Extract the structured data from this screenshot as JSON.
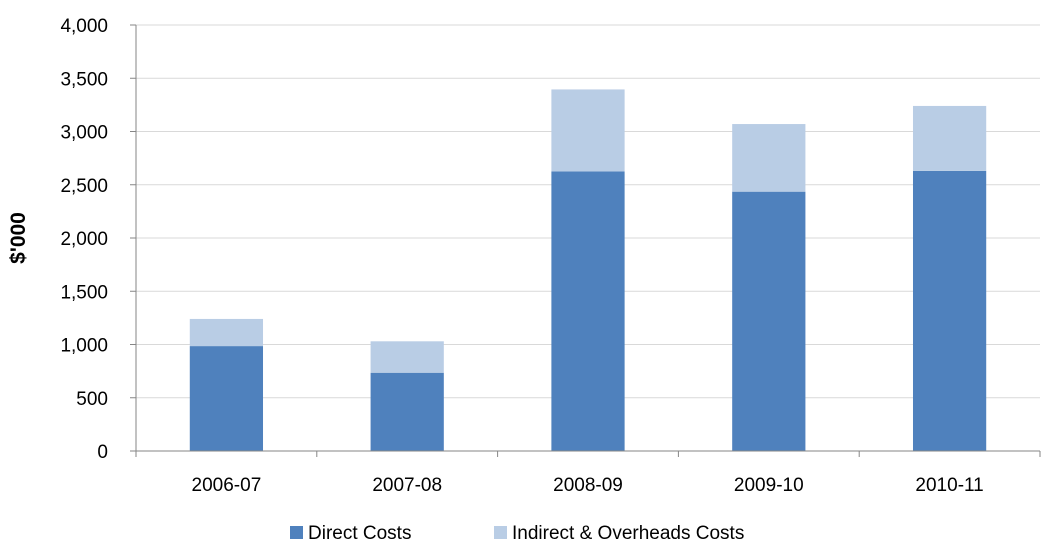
{
  "chart_data": {
    "type": "bar",
    "stacked": true,
    "categories": [
      "2006-07",
      "2007-08",
      "2008-09",
      "2009-10",
      "2010-11"
    ],
    "series": [
      {
        "name": "Direct Costs",
        "values": [
          985,
          735,
          2625,
          2435,
          2630
        ],
        "color": "#4f81bd"
      },
      {
        "name": "Indirect & Overheads Costs",
        "values": [
          255,
          295,
          770,
          635,
          610
        ],
        "color": "#b9cde5"
      }
    ],
    "title": "",
    "xlabel": "",
    "ylabel": "$'000",
    "ylim": [
      0,
      4000
    ],
    "yticks": [
      0,
      500,
      1000,
      1500,
      2000,
      2500,
      3000,
      3500,
      4000
    ],
    "ytick_labels": [
      "0",
      "500",
      "1,000",
      "1,500",
      "2,000",
      "2,500",
      "3,000",
      "3,500",
      "4,000"
    ],
    "grid": "horizontal",
    "legend_position": "bottom",
    "axis_color": "#868686",
    "grid_color": "#d9d9d9"
  }
}
